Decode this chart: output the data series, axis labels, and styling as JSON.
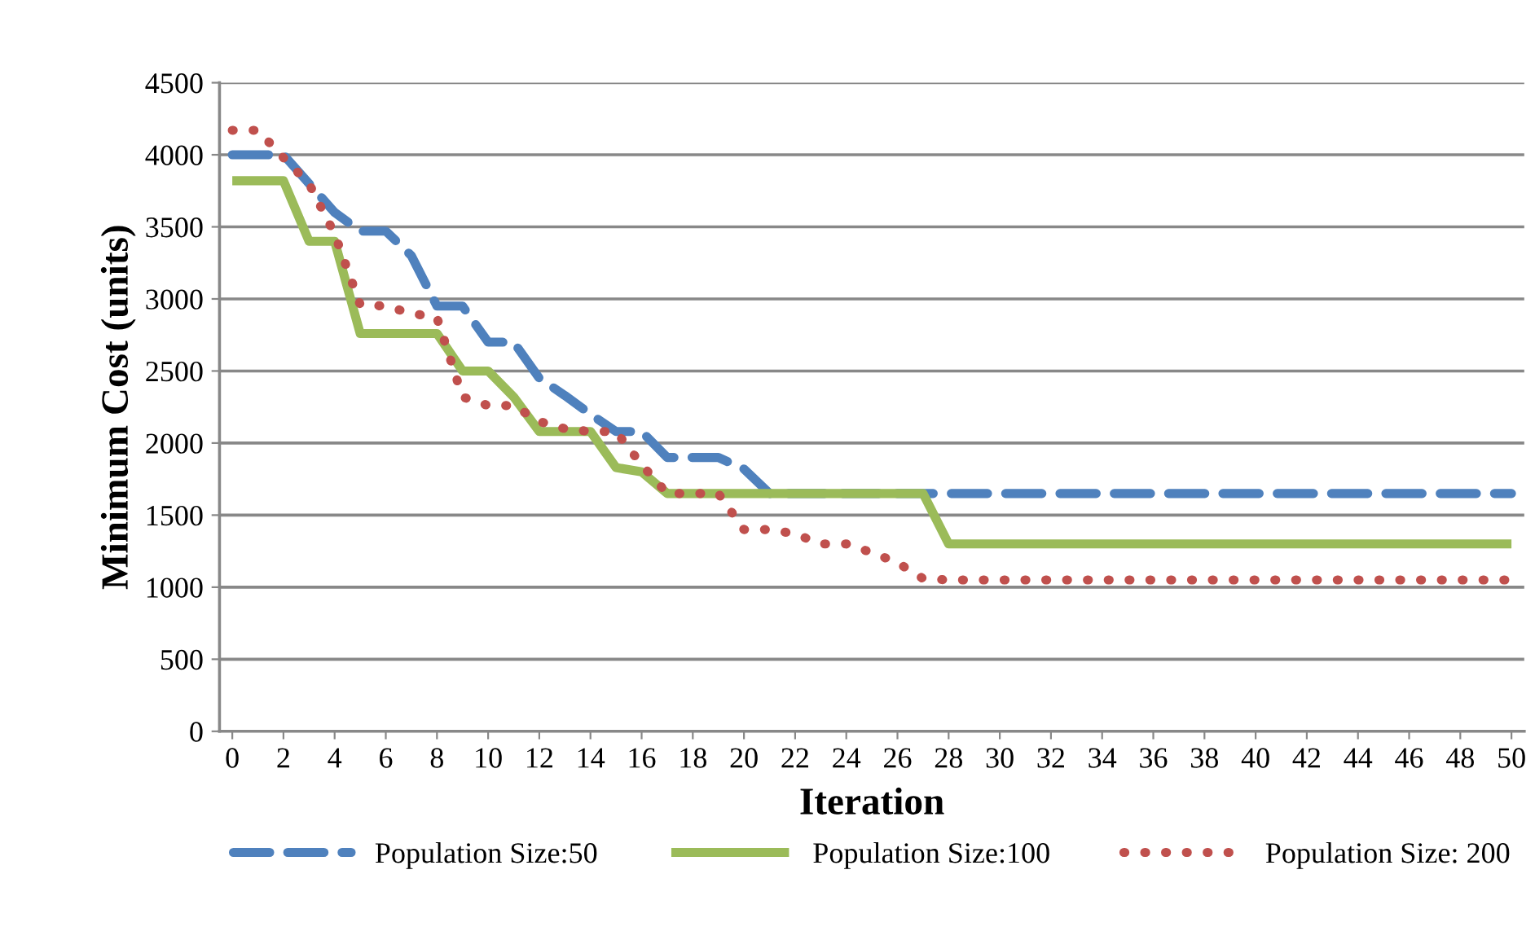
{
  "chart_data": {
    "type": "line",
    "xlabel": "Iteration",
    "ylabel": "Minimum Cost (units)",
    "x": [
      0,
      1,
      2,
      3,
      4,
      5,
      6,
      7,
      8,
      9,
      10,
      11,
      12,
      13,
      14,
      15,
      16,
      17,
      18,
      19,
      20,
      21,
      22,
      23,
      24,
      25,
      26,
      27,
      28,
      29,
      30,
      31,
      32,
      33,
      34,
      35,
      36,
      37,
      38,
      39,
      40,
      41,
      42,
      43,
      44,
      45,
      46,
      47,
      48,
      49,
      50
    ],
    "series": [
      {
        "name": "Population Size:50",
        "color": "#4f81bd",
        "line_style": "dashed",
        "values": [
          4000,
          4000,
          4000,
          3800,
          3600,
          3470,
          3470,
          3300,
          2950,
          2950,
          2700,
          2700,
          2450,
          2330,
          2200,
          2080,
          2080,
          1900,
          1900,
          1900,
          1820,
          1650,
          1650,
          1650,
          1650,
          1650,
          1650,
          1650,
          1650,
          1650,
          1650,
          1650,
          1650,
          1650,
          1650,
          1650,
          1650,
          1650,
          1650,
          1650,
          1650,
          1650,
          1650,
          1650,
          1650,
          1650,
          1650,
          1650,
          1650,
          1650,
          1650
        ]
      },
      {
        "name": "Population Size:100",
        "color": "#9bbb59",
        "line_style": "solid",
        "values": [
          3820,
          3820,
          3820,
          3400,
          3400,
          2760,
          2760,
          2760,
          2760,
          2500,
          2500,
          2320,
          2080,
          2080,
          2080,
          1830,
          1800,
          1650,
          1650,
          1650,
          1650,
          1650,
          1650,
          1650,
          1650,
          1650,
          1650,
          1650,
          1300,
          1300,
          1300,
          1300,
          1300,
          1300,
          1300,
          1300,
          1300,
          1300,
          1300,
          1300,
          1300,
          1300,
          1300,
          1300,
          1300,
          1300,
          1300,
          1300,
          1300,
          1300,
          1300
        ]
      },
      {
        "name": "Population Size: 200",
        "color": "#c0504d",
        "line_style": "dotted",
        "values": [
          4170,
          4170,
          3980,
          3800,
          3450,
          2960,
          2950,
          2900,
          2870,
          2320,
          2260,
          2260,
          2150,
          2100,
          2080,
          2080,
          1850,
          1650,
          1650,
          1650,
          1400,
          1400,
          1370,
          1300,
          1300,
          1240,
          1170,
          1060,
          1050,
          1050,
          1050,
          1050,
          1050,
          1050,
          1050,
          1050,
          1050,
          1050,
          1050,
          1050,
          1050,
          1050,
          1050,
          1050,
          1050,
          1050,
          1050,
          1050,
          1050,
          1050,
          1050
        ]
      }
    ],
    "xlim": [
      -0.5,
      50.5
    ],
    "xticks": [
      0,
      2,
      4,
      6,
      8,
      10,
      12,
      14,
      16,
      18,
      20,
      22,
      24,
      26,
      28,
      30,
      32,
      34,
      36,
      38,
      40,
      42,
      44,
      46,
      48,
      50
    ],
    "ylim": [
      0,
      4500
    ],
    "yticks": [
      0,
      500,
      1000,
      1500,
      2000,
      2500,
      3000,
      3500,
      4000,
      4500
    ],
    "grid": "y",
    "legend": "bottom",
    "marker": "none"
  }
}
